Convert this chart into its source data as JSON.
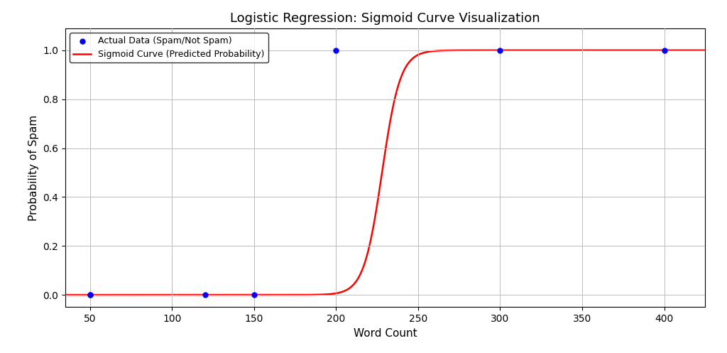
{
  "title": "Logistic Regression: Sigmoid Curve Visualization",
  "xlabel": "Word Count",
  "ylabel": "Probability of Spam",
  "scatter_x": [
    50,
    50,
    120,
    150,
    200,
    300,
    400
  ],
  "scatter_y": [
    0,
    0,
    0,
    0,
    1,
    1,
    1
  ],
  "scatter_color": "blue",
  "scatter_size": 25,
  "sigmoid_color": "red",
  "sigmoid_linewidth": 1.8,
  "sigmoid_midpoint": 228,
  "sigmoid_steepness": 0.18,
  "xlim": [
    35,
    425
  ],
  "ylim": [
    -0.05,
    1.09
  ],
  "xticks": [
    50,
    100,
    150,
    200,
    250,
    300,
    350,
    400
  ],
  "yticks": [
    0.0,
    0.2,
    0.4,
    0.6,
    0.8,
    1.0
  ],
  "grid": true,
  "grid_color": "#bbbbbb",
  "legend_scatter_label": "Actual Data (Spam/Not Spam)",
  "legend_sigmoid_label": "Sigmoid Curve (Predicted Probability)",
  "background_color": "white",
  "title_fontsize": 13,
  "label_fontsize": 11,
  "legend_fontsize": 9,
  "figsize": [
    10.24,
    4.97
  ],
  "dpi": 100
}
